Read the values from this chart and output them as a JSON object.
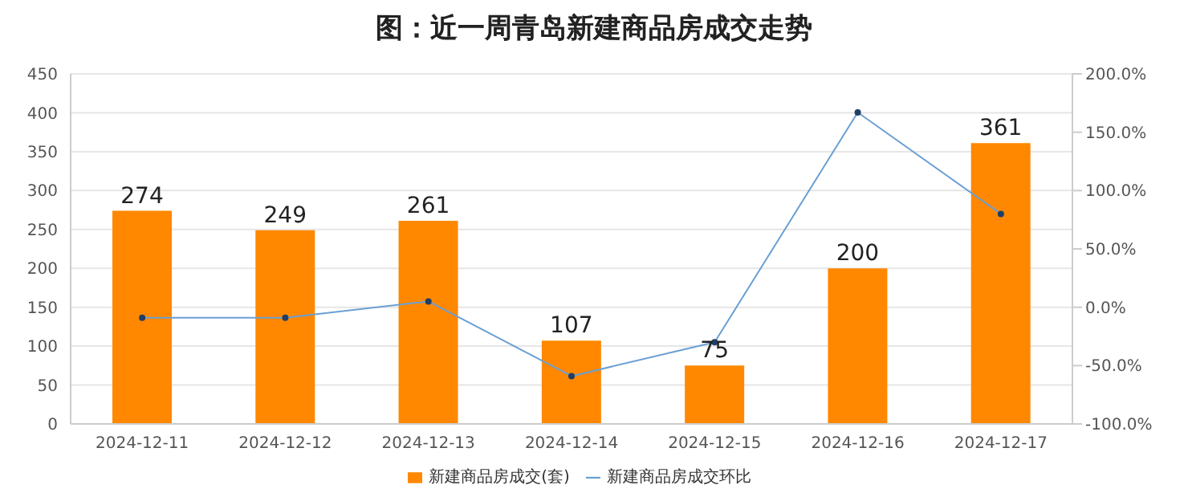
{
  "chart_data": {
    "type": "bar",
    "title": "图：近一周青岛新建商品房成交走势",
    "categories": [
      "2024-12-11",
      "2024-12-12",
      "2024-12-13",
      "2024-12-14",
      "2024-12-15",
      "2024-12-16",
      "2024-12-17"
    ],
    "series": [
      {
        "name": "新建商品房成交(套)",
        "color": "#ff8800",
        "values": [
          274,
          249,
          261,
          107,
          75,
          200,
          361
        ],
        "value_labels": [
          "274",
          "249",
          "261",
          "107",
          "75",
          "200",
          "361"
        ]
      },
      {
        "name": "新建商品房成交环比",
        "type": "line",
        "axis": "y2",
        "color": "#6a9fd4",
        "marker": "circle",
        "values": [
          -9,
          -9,
          5,
          -59,
          -30,
          167,
          80
        ]
      }
    ],
    "ylim": [
      0,
      450
    ],
    "yticks": [
      0,
      50,
      100,
      150,
      200,
      250,
      300,
      350,
      400,
      450
    ],
    "y2lim": [
      -100,
      200
    ],
    "y2ticks": [
      {
        "value": -100,
        "label": "-100.0%"
      },
      {
        "value": -50,
        "label": "-50.0%"
      },
      {
        "value": 0,
        "label": "0.0%"
      },
      {
        "value": 50,
        "label": "50.0%"
      },
      {
        "value": 100,
        "label": "100.0%"
      },
      {
        "value": 150,
        "label": "150.0%"
      },
      {
        "value": 200,
        "label": "200.0%"
      }
    ],
    "grid": "y",
    "legend": "bottom"
  }
}
